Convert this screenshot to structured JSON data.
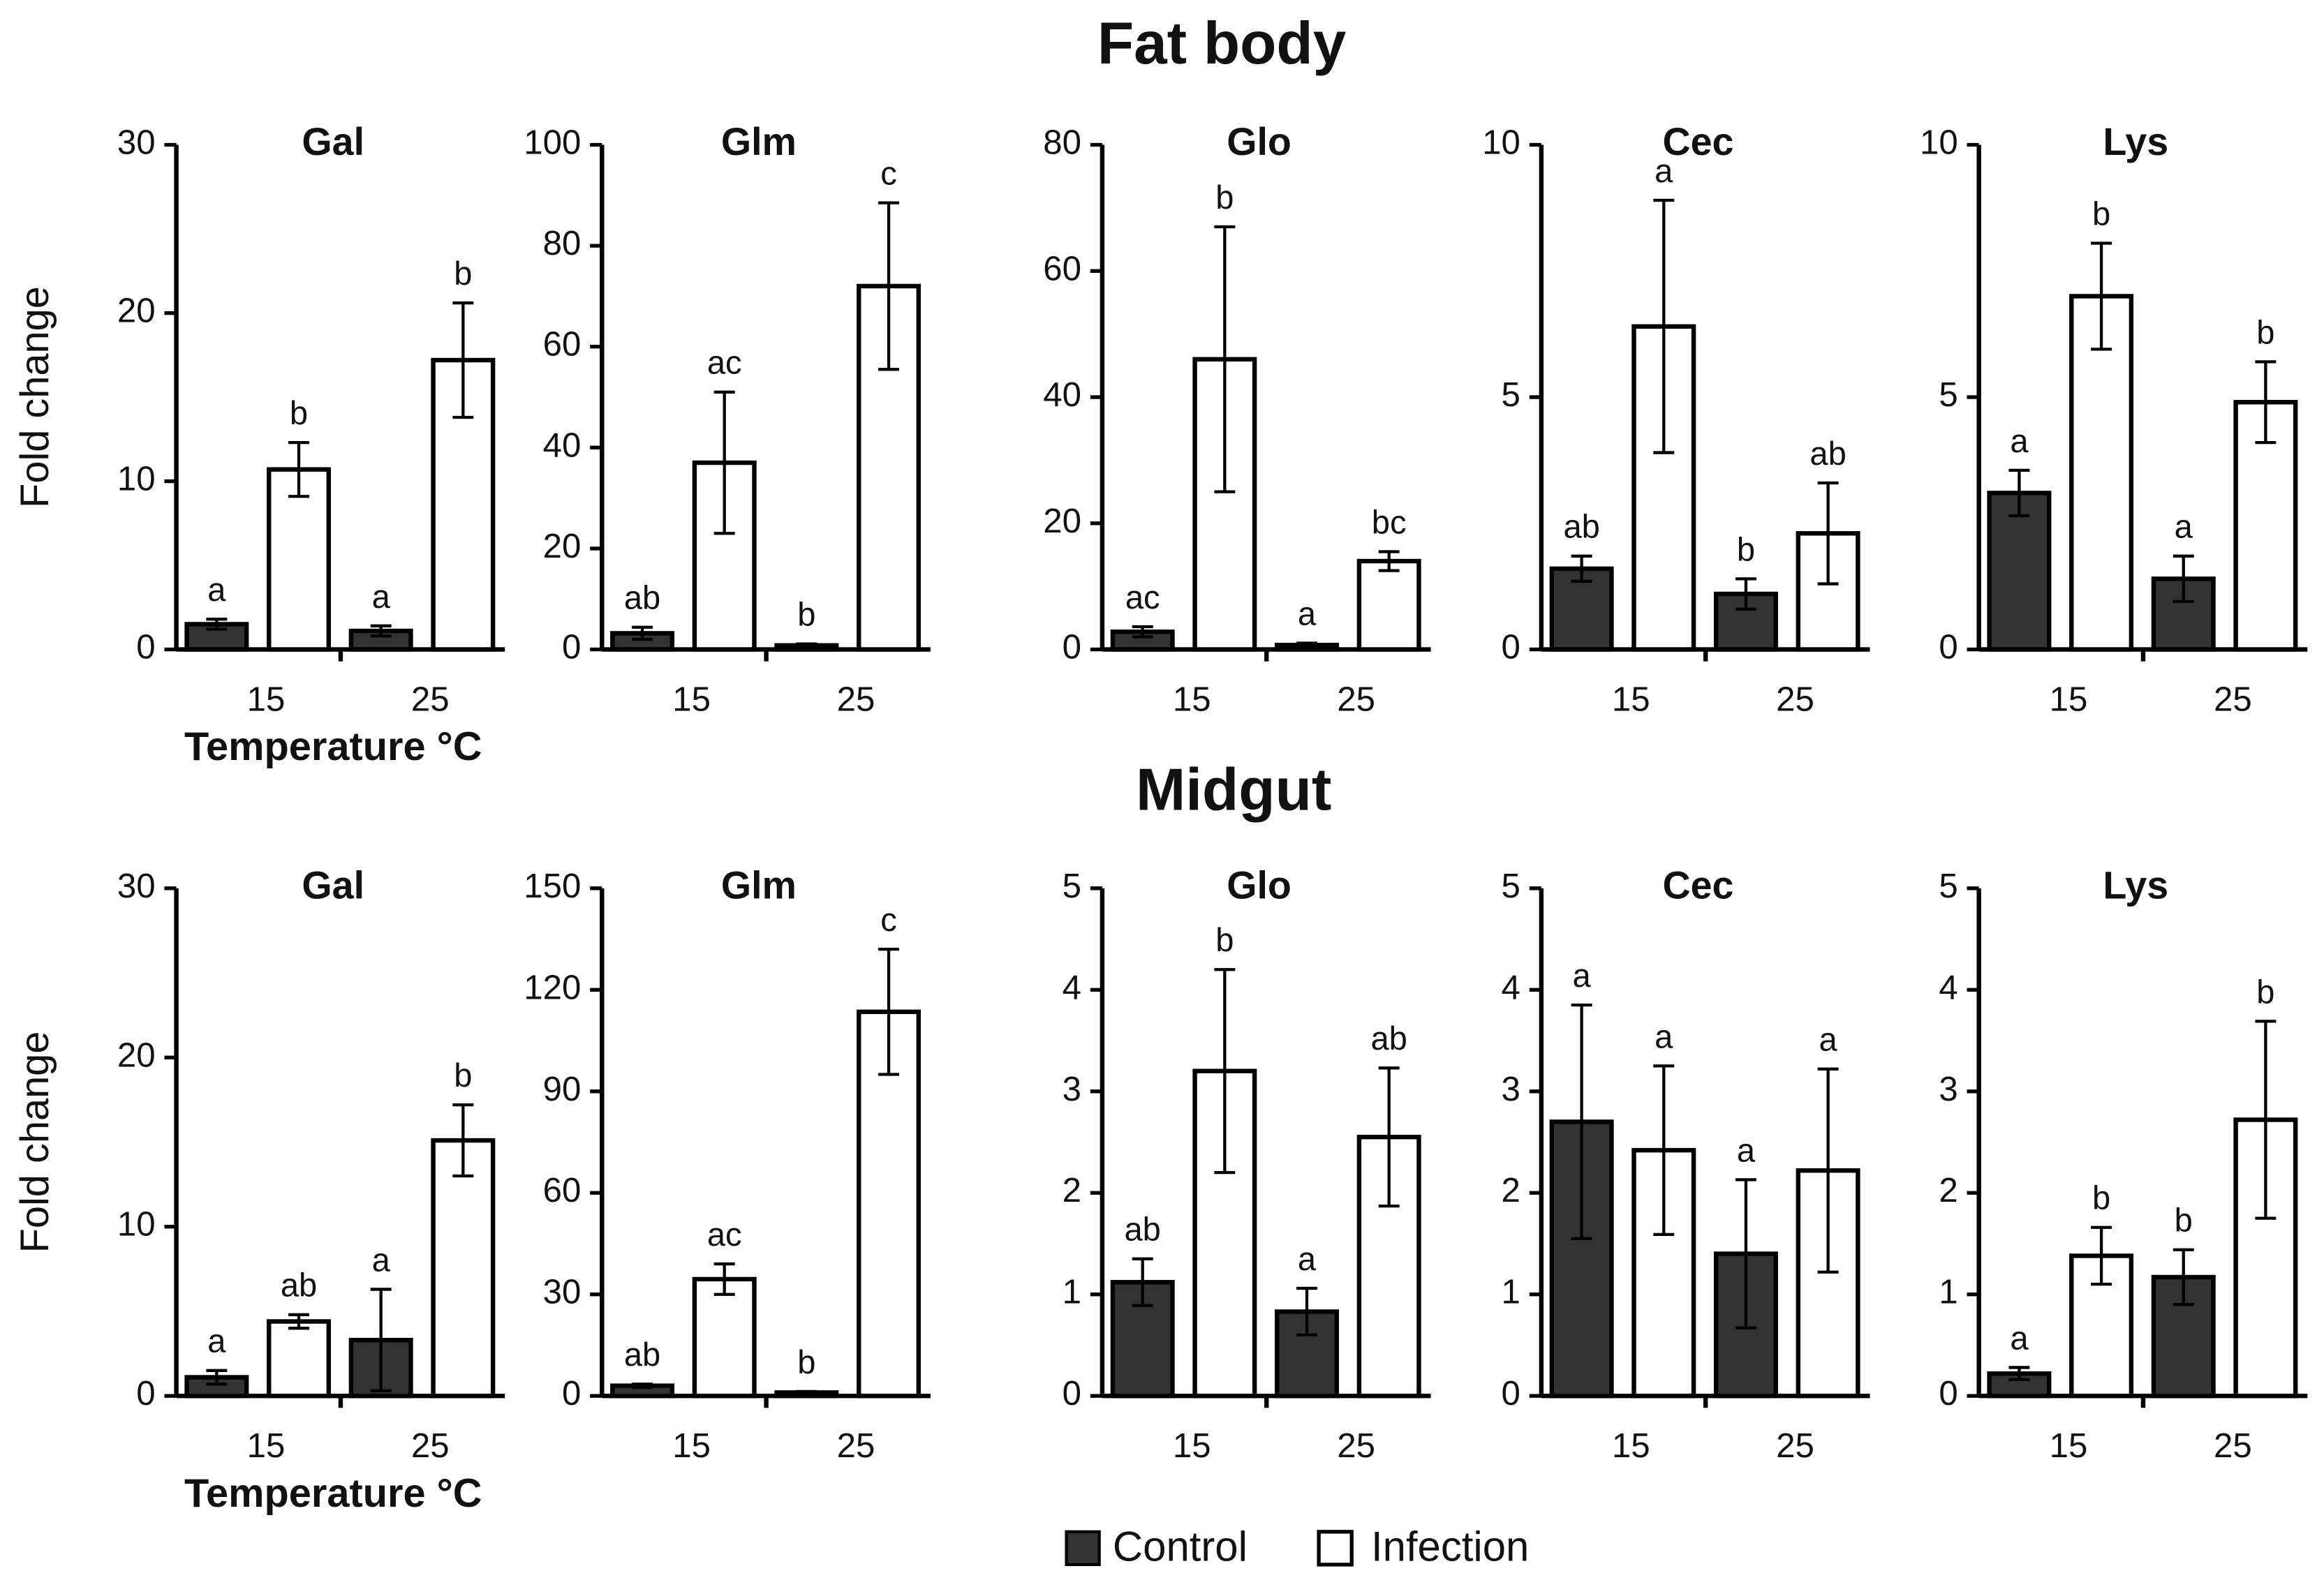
{
  "titles": [
    "Fat body",
    "Midgut"
  ],
  "chart_data": [
    {
      "type": "bar",
      "title": "Gal",
      "ylabel": "Fold change",
      "xlabel": "Temperature °C",
      "categories": [
        "15",
        "25"
      ],
      "ylim": [
        0,
        30
      ],
      "yticks": [
        0,
        10,
        20,
        30
      ],
      "series": [
        {
          "name": "Control",
          "color": "#333333",
          "values": [
            1.5,
            1.1
          ],
          "errors": [
            0.3,
            0.3
          ],
          "annotations": [
            "a",
            "a"
          ]
        },
        {
          "name": "Infection",
          "color": "#ffffff",
          "values": [
            10.7,
            17.2
          ],
          "errors": [
            1.6,
            3.4
          ],
          "annotations": [
            "b",
            "b"
          ]
        }
      ]
    },
    {
      "type": "bar",
      "title": "Glm",
      "categories": [
        "15",
        "25"
      ],
      "ylim": [
        0,
        100
      ],
      "yticks": [
        0,
        20,
        40,
        60,
        80,
        100
      ],
      "series": [
        {
          "name": "Control",
          "color": "#333333",
          "values": [
            3.2,
            0.8
          ],
          "errors": [
            1.2,
            0.3
          ],
          "annotations": [
            "ab",
            "b"
          ]
        },
        {
          "name": "Infection",
          "color": "#ffffff",
          "values": [
            37,
            72
          ],
          "errors": [
            14,
            16.5
          ],
          "annotations": [
            "ac",
            "c"
          ]
        }
      ]
    },
    {
      "type": "bar",
      "title": "Glo",
      "categories": [
        "15",
        "25"
      ],
      "ylim": [
        0,
        80
      ],
      "yticks": [
        0,
        20,
        40,
        60,
        80
      ],
      "series": [
        {
          "name": "Control",
          "color": "#333333",
          "values": [
            2.8,
            0.7
          ],
          "errors": [
            0.8,
            0.3
          ],
          "annotations": [
            "ac",
            "a"
          ]
        },
        {
          "name": "Infection",
          "color": "#ffffff",
          "values": [
            46,
            14
          ],
          "errors": [
            21,
            1.5
          ],
          "annotations": [
            "b",
            "bc"
          ]
        }
      ]
    },
    {
      "type": "bar",
      "title": "Cec",
      "categories": [
        "15",
        "25"
      ],
      "ylim": [
        0,
        10
      ],
      "yticks": [
        0,
        5,
        10
      ],
      "series": [
        {
          "name": "Control",
          "color": "#333333",
          "values": [
            1.6,
            1.1
          ],
          "errors": [
            0.25,
            0.3
          ],
          "annotations": [
            "ab",
            "b"
          ]
        },
        {
          "name": "Infection",
          "color": "#ffffff",
          "values": [
            6.4,
            2.3
          ],
          "errors": [
            2.5,
            1.0
          ],
          "annotations": [
            "a",
            "ab"
          ]
        }
      ]
    },
    {
      "type": "bar",
      "title": "Lys",
      "categories": [
        "15",
        "25"
      ],
      "ylim": [
        0,
        10
      ],
      "yticks": [
        0,
        5,
        10
      ],
      "series": [
        {
          "name": "Control",
          "color": "#333333",
          "values": [
            3.1,
            1.4
          ],
          "errors": [
            0.45,
            0.45
          ],
          "annotations": [
            "a",
            "a"
          ]
        },
        {
          "name": "Infection",
          "color": "#ffffff",
          "values": [
            7.0,
            4.9
          ],
          "errors": [
            1.05,
            0.8
          ],
          "annotations": [
            "b",
            "b"
          ]
        }
      ]
    },
    {
      "type": "bar",
      "title": "Gal",
      "ylabel": "Fold change",
      "xlabel": "Temperature °C",
      "categories": [
        "15",
        "25"
      ],
      "ylim": [
        0,
        30
      ],
      "yticks": [
        0,
        10,
        20,
        30
      ],
      "series": [
        {
          "name": "Control",
          "color": "#333333",
          "values": [
            1.1,
            3.3
          ],
          "errors": [
            0.4,
            3.0
          ],
          "annotations": [
            "a",
            "a"
          ]
        },
        {
          "name": "Infection",
          "color": "#ffffff",
          "values": [
            4.4,
            15.1
          ],
          "errors": [
            0.4,
            2.1
          ],
          "annotations": [
            "ab",
            "b"
          ]
        }
      ]
    },
    {
      "type": "bar",
      "title": "Glm",
      "categories": [
        "15",
        "25"
      ],
      "ylim": [
        0,
        150
      ],
      "yticks": [
        0,
        30,
        60,
        90,
        120,
        150
      ],
      "series": [
        {
          "name": "Control",
          "color": "#333333",
          "values": [
            3,
            1
          ],
          "errors": [
            0.5,
            0.3
          ],
          "annotations": [
            "ab",
            "b"
          ]
        },
        {
          "name": "Infection",
          "color": "#ffffff",
          "values": [
            34.5,
            113.5
          ],
          "errors": [
            4.5,
            18.5
          ],
          "annotations": [
            "ac",
            "c"
          ]
        }
      ]
    },
    {
      "type": "bar",
      "title": "Glo",
      "categories": [
        "15",
        "25"
      ],
      "ylim": [
        0,
        5
      ],
      "yticks": [
        0,
        1,
        2,
        3,
        4,
        5
      ],
      "series": [
        {
          "name": "Control",
          "color": "#333333",
          "values": [
            1.12,
            0.83
          ],
          "errors": [
            0.23,
            0.23
          ],
          "annotations": [
            "ab",
            "a"
          ]
        },
        {
          "name": "Infection",
          "color": "#ffffff",
          "values": [
            3.2,
            2.55
          ],
          "errors": [
            1.0,
            0.68
          ],
          "annotations": [
            "b",
            "ab"
          ]
        }
      ]
    },
    {
      "type": "bar",
      "title": "Cec",
      "categories": [
        "15",
        "25"
      ],
      "ylim": [
        0,
        5
      ],
      "yticks": [
        0,
        1,
        2,
        3,
        4,
        5
      ],
      "series": [
        {
          "name": "Control",
          "color": "#333333",
          "values": [
            2.7,
            1.4
          ],
          "errors": [
            1.15,
            0.73
          ],
          "annotations": [
            "a",
            "a"
          ]
        },
        {
          "name": "Infection",
          "color": "#ffffff",
          "values": [
            2.42,
            2.22
          ],
          "errors": [
            0.83,
            1.0
          ],
          "annotations": [
            "a",
            "a"
          ]
        }
      ]
    },
    {
      "type": "bar",
      "title": "Lys",
      "categories": [
        "15",
        "25"
      ],
      "ylim": [
        0,
        5
      ],
      "yticks": [
        0,
        1,
        2,
        3,
        4,
        5
      ],
      "series": [
        {
          "name": "Control",
          "color": "#333333",
          "values": [
            0.22,
            1.17
          ],
          "errors": [
            0.06,
            0.27
          ],
          "annotations": [
            "a",
            "b"
          ]
        },
        {
          "name": "Infection",
          "color": "#ffffff",
          "values": [
            1.38,
            2.72
          ],
          "errors": [
            0.28,
            0.97
          ],
          "annotations": [
            "b",
            "b"
          ]
        }
      ]
    }
  ]
}
